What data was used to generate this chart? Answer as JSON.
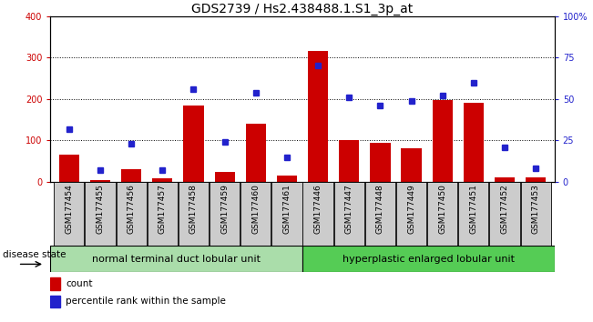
{
  "title": "GDS2739 / Hs2.438488.1.S1_3p_at",
  "categories": [
    "GSM177454",
    "GSM177455",
    "GSM177456",
    "GSM177457",
    "GSM177458",
    "GSM177459",
    "GSM177460",
    "GSM177461",
    "GSM177446",
    "GSM177447",
    "GSM177448",
    "GSM177449",
    "GSM177450",
    "GSM177451",
    "GSM177452",
    "GSM177453"
  ],
  "bar_values": [
    65,
    5,
    30,
    8,
    185,
    25,
    140,
    15,
    315,
    102,
    95,
    82,
    198,
    192,
    10,
    10
  ],
  "dot_values_pct": [
    32,
    7,
    23,
    7,
    56,
    24,
    54,
    15,
    70,
    51,
    46,
    49,
    52,
    60,
    21,
    8
  ],
  "group1_label": "normal terminal duct lobular unit",
  "group2_label": "hyperplastic enlarged lobular unit",
  "group1_count": 8,
  "group2_count": 8,
  "bar_color": "#cc0000",
  "dot_color": "#2222cc",
  "ylim_left": [
    0,
    400
  ],
  "ylim_right": [
    0,
    100
  ],
  "yticks_left": [
    0,
    100,
    200,
    300,
    400
  ],
  "yticks_right": [
    0,
    25,
    50,
    75,
    100
  ],
  "yticklabels_right": [
    "0",
    "25",
    "50",
    "75",
    "100%"
  ],
  "grid_color": "black",
  "background_color": "#ffffff",
  "plot_bg_color": "#ffffff",
  "group1_bg": "#aaddaa",
  "group2_bg": "#55cc55",
  "tick_label_bg": "#cccccc",
  "disease_state_label": "disease state",
  "legend_count_label": "count",
  "legend_pct_label": "percentile rank within the sample",
  "title_fontsize": 10,
  "tick_fontsize": 7,
  "label_fontsize": 8,
  "cat_fontsize": 6.5
}
